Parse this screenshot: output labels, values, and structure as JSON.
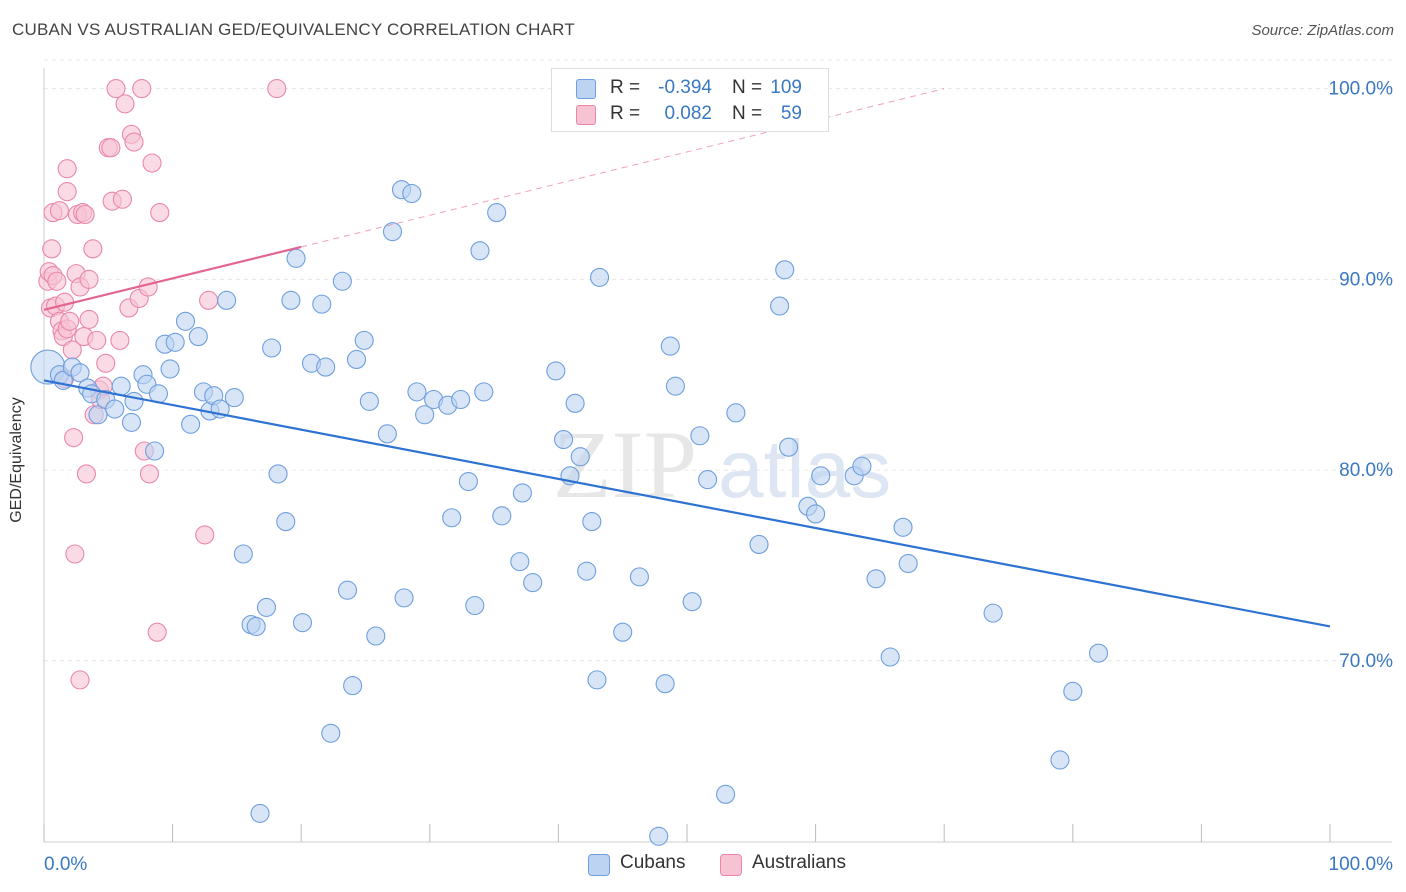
{
  "header": {
    "title": "CUBAN VS AUSTRALIAN GED/EQUIVALENCY CORRELATION CHART",
    "source": "Source: ZipAtlas.com"
  },
  "watermark": {
    "zip": "ZIP",
    "atlas": "atlas"
  },
  "legend": {
    "rows": [
      {
        "r_label": "R =",
        "r_value": "-0.394",
        "n_label": "N =",
        "n_value": "109"
      },
      {
        "r_label": "R =",
        "r_value": "0.082",
        "n_label": "N =",
        "n_value": "59"
      }
    ]
  },
  "bottom_legend": {
    "cubans": "Cubans",
    "australians": "Australians"
  },
  "colors": {
    "cuban_fill": "#bcd4f2",
    "cuban_stroke": "#6f9fde",
    "cuban_line": "#2e72d2",
    "aus_fill": "#f7c3d3",
    "aus_stroke": "#ea87a8",
    "aus_line": "#e2668f",
    "tick_text": "#3a78c3",
    "grid": "#e6e6e6"
  },
  "chart_data": {
    "type": "scatter",
    "title": "CUBAN VS AUSTRALIAN GED/EQUIVALENCY CORRELATION CHART",
    "xlabel": "",
    "ylabel": "GED/Equivalency",
    "xlim": [
      0,
      100
    ],
    "ylim": [
      60.5,
      101.5
    ],
    "x_tick_labels": [
      "0.0%",
      "100.0%"
    ],
    "y_ticks": [
      70,
      80,
      90,
      100
    ],
    "y_tick_labels": [
      "70.0%",
      "80.0%",
      "90.0%",
      "100.0%"
    ],
    "grid": true,
    "series": [
      {
        "name": "Cubans",
        "r": -0.394,
        "n": 109,
        "trend": {
          "x": [
            0,
            100
          ],
          "y": [
            84.7,
            71.8
          ]
        },
        "points": [
          [
            0.3,
            85.4
          ],
          [
            1.2,
            85.0
          ],
          [
            1.5,
            84.7
          ],
          [
            2.2,
            85.4
          ],
          [
            2.8,
            85.1
          ],
          [
            3.4,
            84.3
          ],
          [
            3.7,
            84.0
          ],
          [
            4.2,
            82.9
          ],
          [
            4.8,
            83.7
          ],
          [
            5.5,
            83.2
          ],
          [
            6.0,
            84.4
          ],
          [
            6.8,
            82.5
          ],
          [
            7.0,
            83.6
          ],
          [
            7.7,
            85.0
          ],
          [
            8.0,
            84.5
          ],
          [
            8.6,
            81.0
          ],
          [
            8.9,
            84.0
          ],
          [
            9.4,
            86.6
          ],
          [
            9.8,
            85.3
          ],
          [
            10.2,
            86.7
          ],
          [
            11.0,
            87.8
          ],
          [
            11.4,
            82.4
          ],
          [
            12.0,
            87.0
          ],
          [
            12.4,
            84.1
          ],
          [
            12.9,
            83.1
          ],
          [
            13.2,
            83.9
          ],
          [
            13.7,
            83.2
          ],
          [
            14.2,
            88.9
          ],
          [
            14.8,
            83.8
          ],
          [
            15.5,
            75.6
          ],
          [
            16.1,
            71.9
          ],
          [
            16.5,
            71.8
          ],
          [
            16.8,
            62.0
          ],
          [
            17.3,
            72.8
          ],
          [
            17.7,
            86.4
          ],
          [
            18.2,
            79.8
          ],
          [
            18.8,
            77.3
          ],
          [
            19.2,
            88.9
          ],
          [
            19.6,
            91.1
          ],
          [
            20.1,
            72.0
          ],
          [
            20.8,
            85.6
          ],
          [
            21.6,
            88.7
          ],
          [
            21.9,
            85.4
          ],
          [
            22.3,
            66.2
          ],
          [
            23.2,
            89.9
          ],
          [
            23.6,
            73.7
          ],
          [
            24.0,
            68.7
          ],
          [
            24.3,
            85.8
          ],
          [
            24.9,
            86.8
          ],
          [
            25.3,
            83.6
          ],
          [
            25.8,
            71.3
          ],
          [
            26.7,
            81.9
          ],
          [
            27.1,
            92.5
          ],
          [
            27.8,
            94.7
          ],
          [
            28.0,
            73.3
          ],
          [
            28.6,
            94.5
          ],
          [
            29.0,
            84.1
          ],
          [
            29.6,
            82.9
          ],
          [
            30.3,
            83.7
          ],
          [
            31.4,
            83.4
          ],
          [
            31.7,
            77.5
          ],
          [
            32.4,
            83.7
          ],
          [
            33.0,
            79.4
          ],
          [
            33.5,
            72.9
          ],
          [
            33.9,
            91.5
          ],
          [
            34.2,
            84.1
          ],
          [
            35.2,
            93.5
          ],
          [
            35.6,
            77.6
          ],
          [
            37.0,
            75.2
          ],
          [
            37.2,
            78.8
          ],
          [
            38.0,
            74.1
          ],
          [
            39.8,
            85.2
          ],
          [
            40.4,
            81.6
          ],
          [
            40.9,
            79.7
          ],
          [
            41.3,
            83.5
          ],
          [
            41.7,
            80.7
          ],
          [
            42.2,
            74.7
          ],
          [
            42.6,
            77.3
          ],
          [
            43.0,
            69.0
          ],
          [
            43.2,
            90.1
          ],
          [
            45.0,
            71.5
          ],
          [
            46.3,
            74.4
          ],
          [
            47.8,
            60.8
          ],
          [
            48.3,
            68.8
          ],
          [
            48.7,
            86.5
          ],
          [
            49.1,
            84.4
          ],
          [
            50.4,
            73.1
          ],
          [
            51.0,
            81.8
          ],
          [
            51.6,
            79.5
          ],
          [
            53.0,
            63.0
          ],
          [
            53.8,
            83.0
          ],
          [
            55.6,
            76.1
          ],
          [
            57.2,
            88.6
          ],
          [
            57.6,
            90.5
          ],
          [
            57.9,
            81.2
          ],
          [
            59.4,
            78.1
          ],
          [
            60.0,
            77.7
          ],
          [
            60.4,
            79.7
          ],
          [
            63.0,
            79.7
          ],
          [
            63.6,
            80.2
          ],
          [
            64.7,
            74.3
          ],
          [
            65.8,
            70.2
          ],
          [
            66.8,
            77.0
          ],
          [
            67.2,
            75.1
          ],
          [
            73.8,
            72.5
          ],
          [
            79.0,
            64.8
          ],
          [
            80.0,
            68.4
          ],
          [
            82.0,
            70.4
          ]
        ]
      },
      {
        "name": "Australians",
        "r": 0.082,
        "n": 59,
        "trend": {
          "x": [
            0,
            20
          ],
          "y": [
            88.4,
            91.7
          ]
        },
        "trend_dashed": {
          "x": [
            20,
            70
          ],
          "y": [
            91.7,
            100.0
          ]
        },
        "points": [
          [
            0.3,
            89.9
          ],
          [
            0.4,
            90.4
          ],
          [
            0.5,
            88.5
          ],
          [
            0.6,
            91.6
          ],
          [
            0.7,
            93.5
          ],
          [
            0.7,
            90.2
          ],
          [
            0.9,
            88.6
          ],
          [
            1.0,
            89.9
          ],
          [
            1.2,
            93.6
          ],
          [
            1.2,
            87.8
          ],
          [
            1.4,
            87.3
          ],
          [
            1.5,
            87.0
          ],
          [
            1.6,
            88.8
          ],
          [
            1.6,
            84.8
          ],
          [
            1.8,
            95.8
          ],
          [
            1.8,
            94.6
          ],
          [
            1.8,
            87.4
          ],
          [
            2.0,
            87.8
          ],
          [
            2.2,
            86.3
          ],
          [
            2.3,
            81.7
          ],
          [
            2.4,
            75.6
          ],
          [
            2.5,
            90.3
          ],
          [
            2.6,
            93.4
          ],
          [
            2.8,
            89.6
          ],
          [
            2.8,
            69.0
          ],
          [
            3.0,
            93.5
          ],
          [
            3.1,
            87.0
          ],
          [
            3.2,
            93.4
          ],
          [
            3.3,
            79.8
          ],
          [
            3.5,
            90.0
          ],
          [
            3.5,
            87.9
          ],
          [
            3.8,
            91.6
          ],
          [
            3.9,
            82.9
          ],
          [
            4.1,
            86.8
          ],
          [
            4.3,
            84.2
          ],
          [
            4.4,
            83.7
          ],
          [
            4.6,
            84.4
          ],
          [
            4.8,
            85.6
          ],
          [
            5.0,
            96.9
          ],
          [
            5.2,
            96.9
          ],
          [
            5.3,
            94.1
          ],
          [
            5.6,
            100.0
          ],
          [
            5.9,
            86.8
          ],
          [
            6.1,
            94.2
          ],
          [
            6.3,
            99.2
          ],
          [
            6.6,
            88.5
          ],
          [
            6.8,
            97.6
          ],
          [
            7.0,
            97.2
          ],
          [
            7.4,
            89.0
          ],
          [
            7.6,
            100.0
          ],
          [
            7.8,
            81.0
          ],
          [
            8.1,
            89.6
          ],
          [
            8.2,
            79.8
          ],
          [
            8.4,
            96.1
          ],
          [
            8.8,
            71.5
          ],
          [
            9.0,
            93.5
          ],
          [
            12.5,
            76.6
          ],
          [
            12.8,
            88.9
          ],
          [
            18.1,
            100.0
          ]
        ]
      }
    ]
  }
}
